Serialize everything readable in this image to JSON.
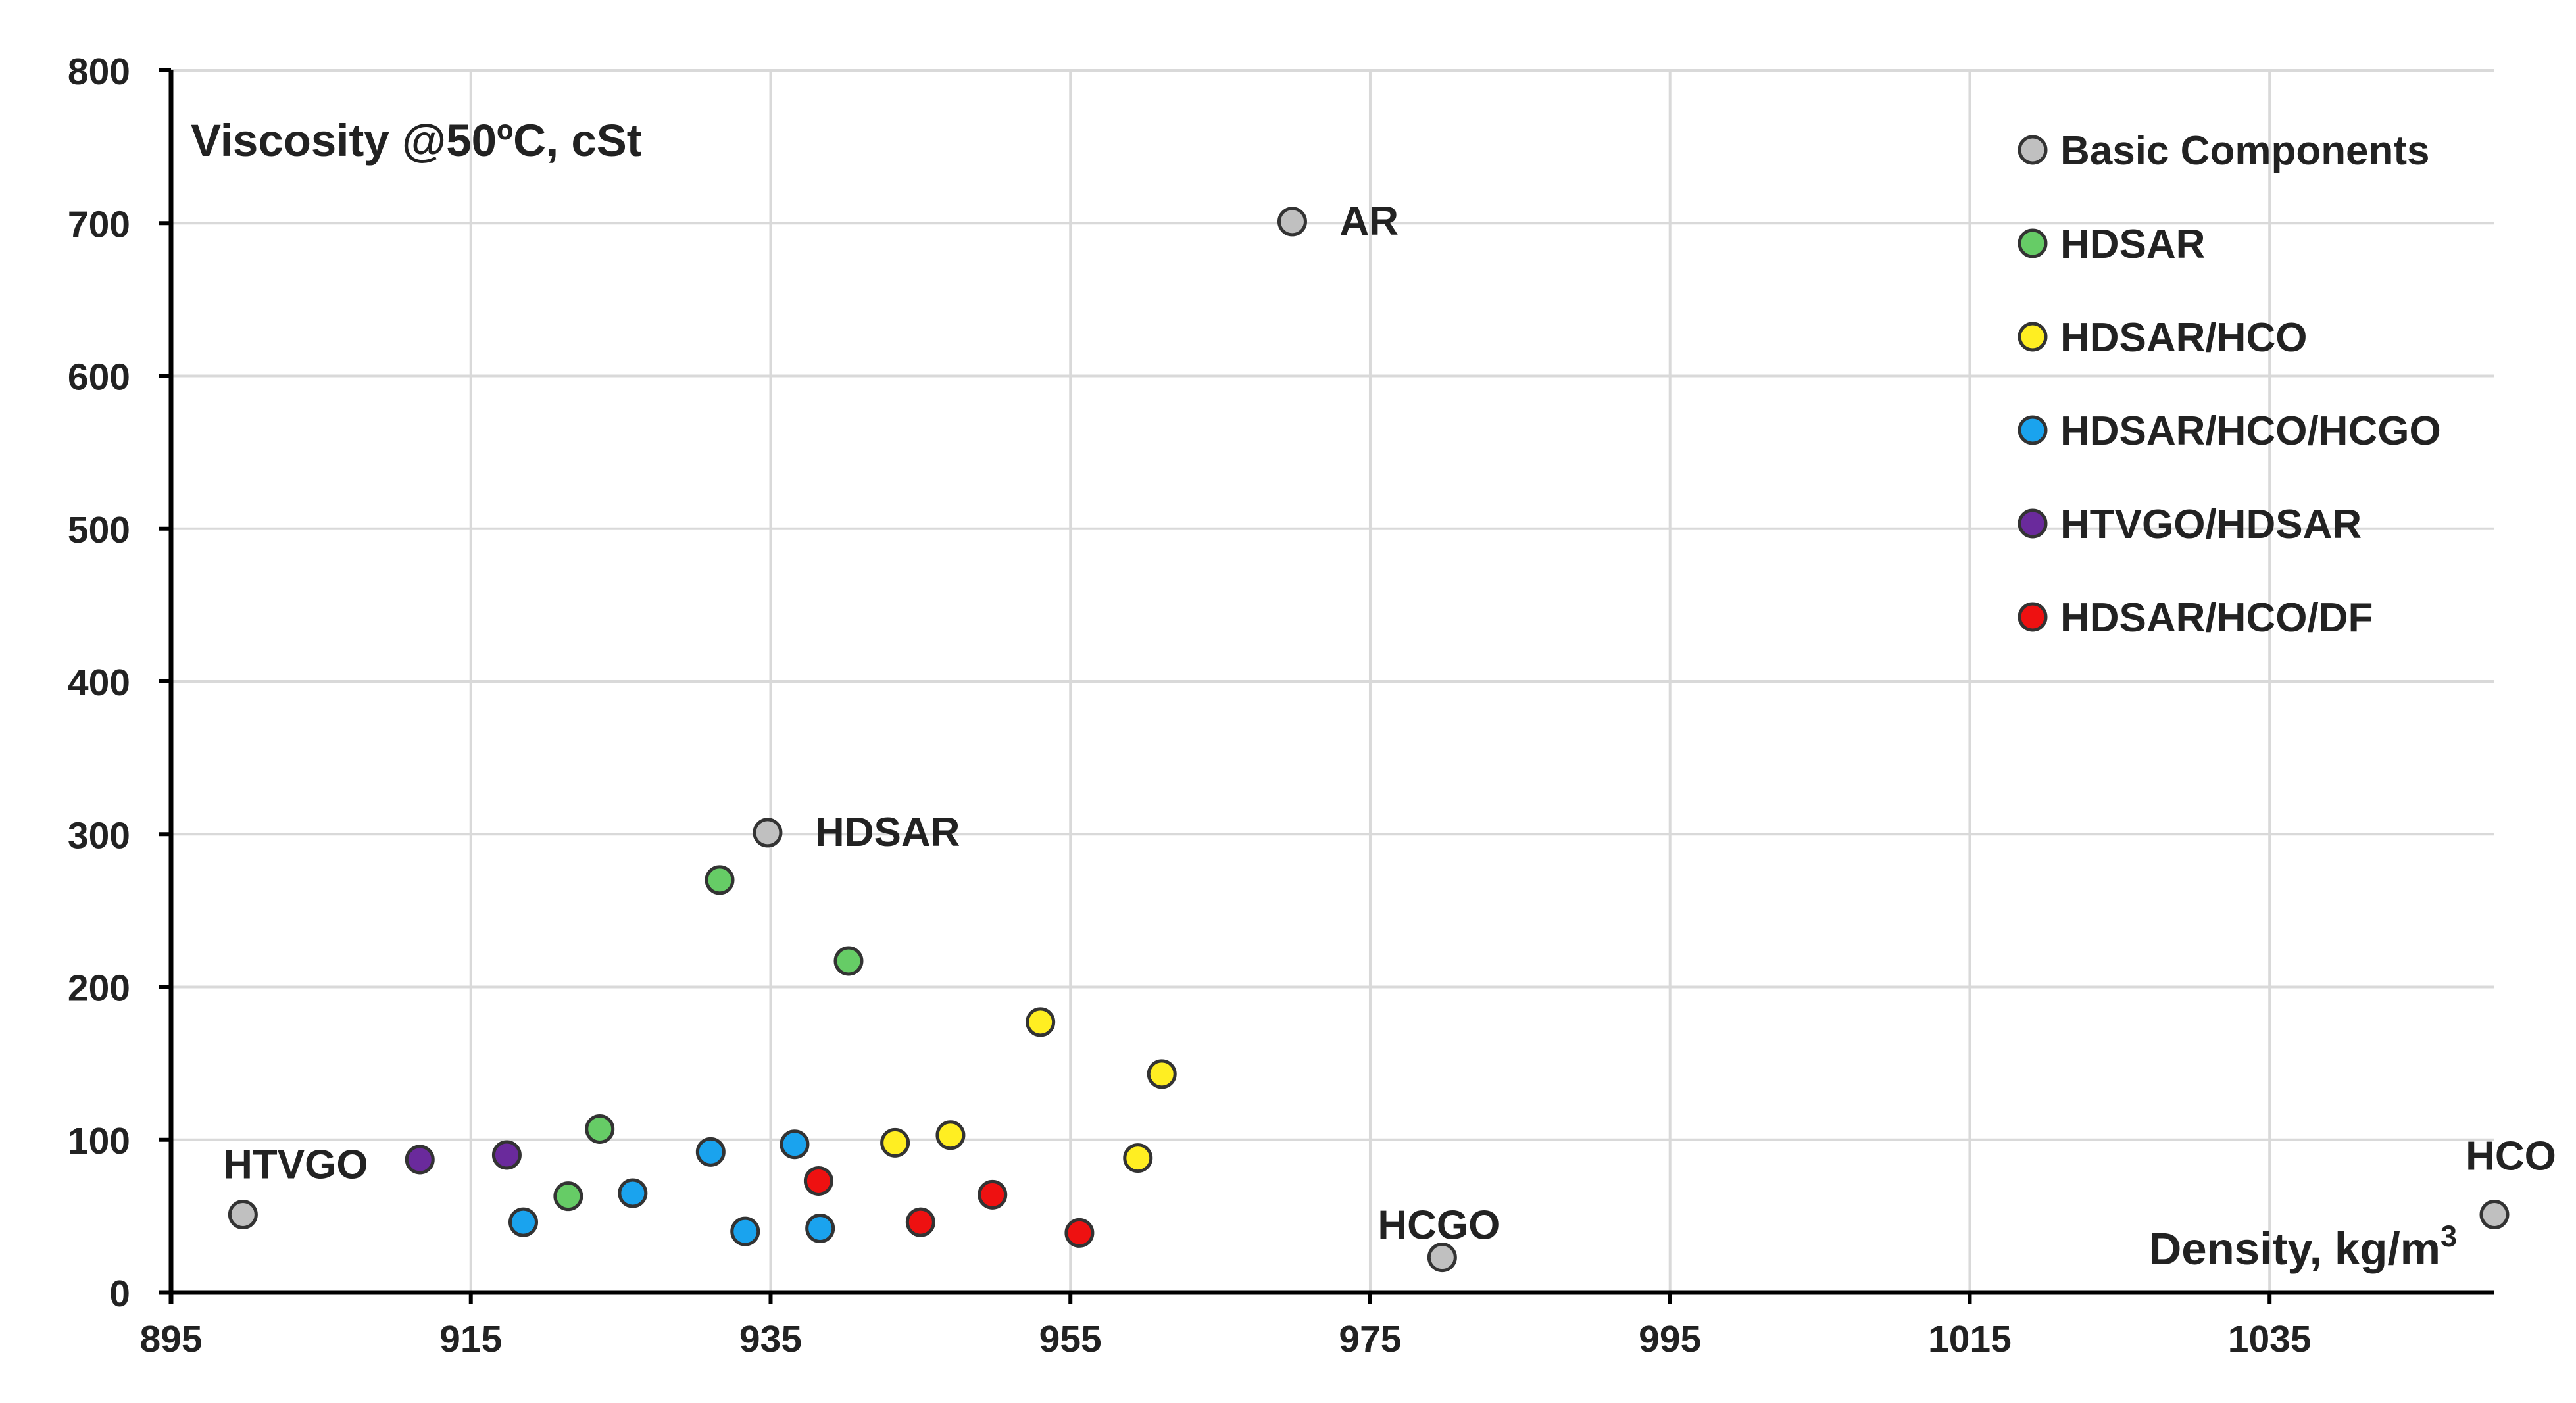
{
  "chart_data": {
    "type": "scatter",
    "title": "",
    "ylabel": "Viscosity @50ºC, cSt",
    "xlabel": "Density, kg/m",
    "xlabel_sup": "3",
    "xlim": [
      895,
      1050
    ],
    "ylim": [
      0,
      800
    ],
    "x_ticks": [
      895,
      915,
      935,
      955,
      975,
      995,
      1015,
      1035
    ],
    "y_ticks": [
      0,
      100,
      200,
      300,
      400,
      500,
      600,
      700,
      800
    ],
    "x_tick_labels": [
      "895",
      "915",
      "935",
      "955",
      "975",
      "995",
      "1015",
      "1035"
    ],
    "y_tick_labels": [
      "0",
      "100",
      "200",
      "300",
      "400",
      "500",
      "600",
      "700",
      "800"
    ],
    "grid": true,
    "legend_position": "top-right",
    "series": [
      {
        "name": "Basic Components",
        "color": "#c0c0c0",
        "points": [
          {
            "x": 899.8,
            "y": 51,
            "label": "HTVGO"
          },
          {
            "x": 934.8,
            "y": 301,
            "label": "HDSAR"
          },
          {
            "x": 969.8,
            "y": 701,
            "label": "AR"
          },
          {
            "x": 979.8,
            "y": 23,
            "label": "HCGO"
          },
          {
            "x": 1050,
            "y": 51,
            "label": "HCO"
          }
        ]
      },
      {
        "name": "HDSAR",
        "color": "#66cc66",
        "points": [
          {
            "x": 931.6,
            "y": 270
          },
          {
            "x": 940.2,
            "y": 217
          },
          {
            "x": 923.6,
            "y": 107
          },
          {
            "x": 921.5,
            "y": 63
          }
        ]
      },
      {
        "name": "HDSAR/HCO",
        "color": "#ffee22",
        "points": [
          {
            "x": 953.0,
            "y": 177
          },
          {
            "x": 961.1,
            "y": 143
          },
          {
            "x": 947.0,
            "y": 103
          },
          {
            "x": 943.3,
            "y": 98
          },
          {
            "x": 959.5,
            "y": 88
          }
        ]
      },
      {
        "name": "HDSAR/HCO/HCGO",
        "color": "#1aa3ee",
        "points": [
          {
            "x": 936.6,
            "y": 97
          },
          {
            "x": 931.0,
            "y": 92
          },
          {
            "x": 925.8,
            "y": 65
          },
          {
            "x": 918.5,
            "y": 46
          },
          {
            "x": 933.3,
            "y": 40
          },
          {
            "x": 938.3,
            "y": 42
          }
        ]
      },
      {
        "name": "HTVGO/HDSAR",
        "color": "#6a2a9c",
        "points": [
          {
            "x": 911.6,
            "y": 87
          },
          {
            "x": 917.4,
            "y": 90
          }
        ]
      },
      {
        "name": "HDSAR/HCO/DF",
        "color": "#ee1111",
        "points": [
          {
            "x": 938.2,
            "y": 73
          },
          {
            "x": 949.8,
            "y": 64
          },
          {
            "x": 945.0,
            "y": 46
          },
          {
            "x": 955.6,
            "y": 39
          }
        ]
      }
    ]
  }
}
